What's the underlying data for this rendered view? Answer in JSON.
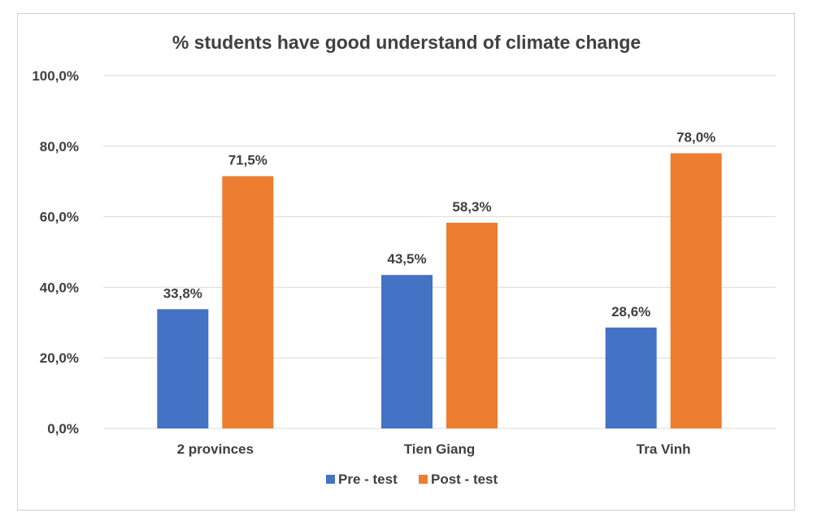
{
  "chart_data": {
    "type": "bar",
    "title": "% students have good understand of climate change",
    "categories": [
      "2 provinces",
      "Tien Giang",
      "Tra Vinh"
    ],
    "series": [
      {
        "name": "Pre - test",
        "color": "#4472C4",
        "values": [
          33.8,
          43.5,
          28.6
        ],
        "labels": [
          "33,8%",
          "43,5%",
          "28,6%"
        ]
      },
      {
        "name": "Post - test",
        "color": "#ED7D31",
        "values": [
          71.5,
          58.3,
          78.0
        ],
        "labels": [
          "71,5%",
          "58,3%",
          "78,0%"
        ]
      }
    ],
    "ylim": [
      0,
      100
    ],
    "yticks": [
      0,
      20,
      40,
      60,
      80,
      100
    ],
    "ytick_labels": [
      "0,0%",
      "20,0%",
      "40,0%",
      "60,0%",
      "80,0%",
      "100,0%"
    ],
    "grid": true,
    "legend_position": "bottom"
  }
}
